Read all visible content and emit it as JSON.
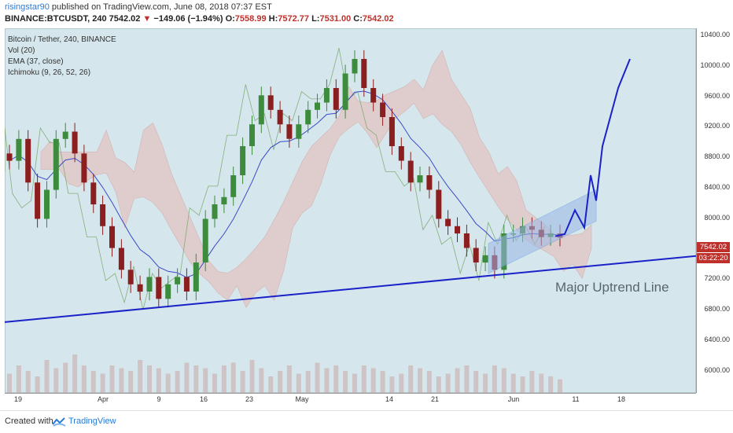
{
  "header": {
    "author": "risingstar90",
    "published": " published on TradingView.com, June 08, 2018 07:37 EST",
    "symbol": "BINANCE:BTCUSDT, 240",
    "last": "7542.02",
    "change": "−149.06 (−1.94%)",
    "o_label": "O:",
    "o_val": "7558.99",
    "h_label": "H:",
    "h_val": "7572.77",
    "l_label": "L:",
    "l_val": "7531.00",
    "c_label": "C:",
    "c_val": "7542.02"
  },
  "legend": {
    "title": "Bitcoin / Tether, 240, BINANCE",
    "vol": "Vol (20)",
    "ema": "EMA (37, close)",
    "ichimoku": "Ichimoku (9, 26, 52, 26)"
  },
  "price_axis": [
    "10400.00",
    "10000.00",
    "9600.00",
    "9200.00",
    "8800.00",
    "8400.00",
    "8000.00",
    "7600.00",
    "7200.00",
    "6800.00",
    "6400.00",
    "6000.00"
  ],
  "time_axis": [
    "19",
    "Apr",
    "9",
    "16",
    "23",
    "May",
    "14",
    "21",
    "Jun",
    "11",
    "18"
  ],
  "price_tags": {
    "last_price": "7542.02",
    "countdown": "03:22:20"
  },
  "annotation": "Major Uptrend Line",
  "footer": {
    "created": "Created with",
    "brand": "TradingView"
  },
  "colors": {
    "background": "#d5e6ec",
    "bull": "#3d8b3d",
    "bear": "#8b1e1e",
    "trendline": "#1a22c8",
    "channel": "#9cb8e8",
    "cloud_bull": "#a8cba0",
    "cloud_bear": "#e8b9b4",
    "ema": "#3b4bc8",
    "last_price_tag": "#c0302b"
  },
  "chart_data": {
    "type": "candlestick",
    "ylim": [
      5600,
      10400
    ],
    "close_series": [
      8600,
      8900,
      8300,
      7800,
      8200,
      8900,
      9000,
      8700,
      8300,
      8000,
      7700,
      7400,
      7100,
      6900,
      6800,
      7000,
      6700,
      6900,
      7000,
      6800,
      7200,
      7800,
      8000,
      8100,
      8400,
      8800,
      9100,
      9500,
      9300,
      9100,
      8900,
      9100,
      9300,
      9400,
      9600,
      9300,
      9800,
      10000,
      9600,
      9400,
      9200,
      8800,
      8600,
      8300,
      8400,
      8200,
      7800,
      7700,
      7600,
      7400,
      7200,
      7300,
      7100,
      7600,
      7600,
      7700,
      7650,
      7550,
      7600,
      7542
    ],
    "volume_relative": [
      0.35,
      0.5,
      0.4,
      0.3,
      0.6,
      0.45,
      0.55,
      0.7,
      0.5,
      0.4,
      0.35,
      0.5,
      0.45,
      0.4,
      0.6,
      0.5,
      0.45,
      0.35,
      0.4,
      0.55,
      0.5,
      0.45,
      0.35,
      0.5,
      0.55,
      0.4,
      0.6,
      0.45,
      0.3,
      0.4,
      0.5,
      0.35,
      0.4,
      0.55,
      0.45,
      0.5,
      0.4,
      0.35,
      0.5,
      0.45,
      0.4,
      0.3,
      0.35,
      0.5,
      0.45,
      0.4,
      0.3,
      0.35,
      0.45,
      0.5,
      0.4,
      0.35,
      0.5,
      0.45,
      0.35,
      0.3,
      0.4,
      0.35,
      0.3,
      0.25
    ],
    "uptrend_line": {
      "start": 6380,
      "end": 7290
    },
    "channel": {
      "lower_start": 7050,
      "lower_end": 7770,
      "upper_start": 7460,
      "upper_end": 8200
    },
    "projection": [
      7560,
      7590,
      7920,
      7680,
      8400,
      8050,
      8800,
      9600,
      10000
    ]
  }
}
